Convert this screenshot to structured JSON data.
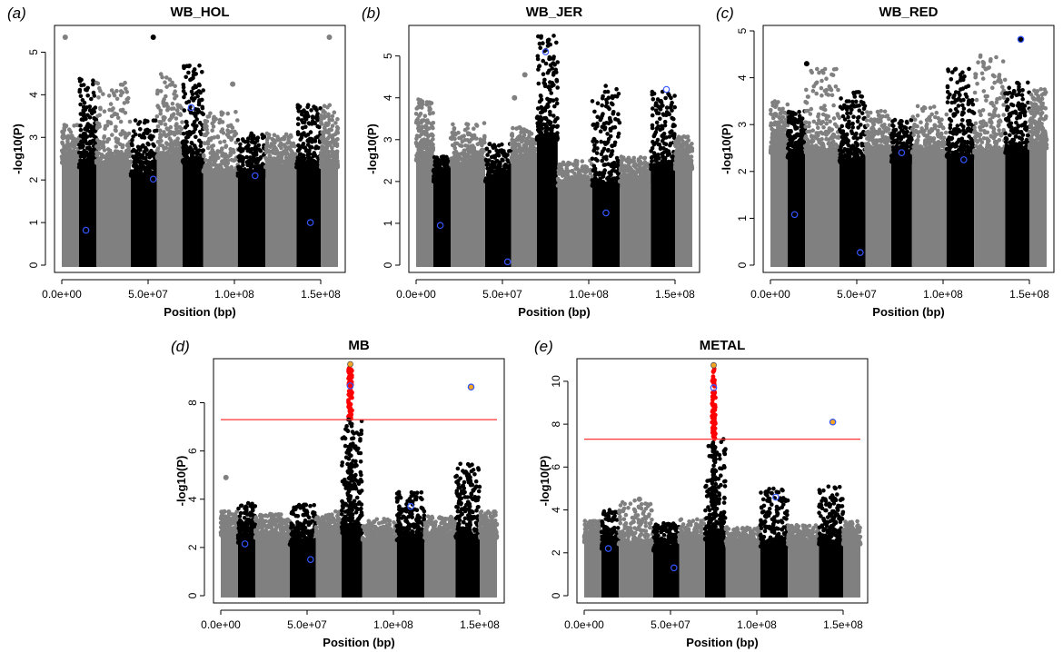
{
  "colors": {
    "gray": "#808080",
    "black": "#000000",
    "red": "#ff0000",
    "orange": "#f5a623",
    "blue_ring": "#3355ff",
    "threshold": "#ff3333"
  },
  "chart_data": [
    {
      "id": "a",
      "type": "scatter",
      "panel_label": "(a)",
      "title": "WB_HOL",
      "xlabel": "Position (bp)",
      "ylabel": "-log10(P)",
      "xlim": [
        0,
        160000000
      ],
      "ylim": [
        0,
        5.5
      ],
      "x_ticks": [
        "0.0e+00",
        "5.0e+07",
        "1.0e+08",
        "1.5e+08"
      ],
      "x_tick_values": [
        0,
        50000000,
        100000000,
        150000000
      ],
      "y_ticks": [
        0,
        1,
        2,
        3,
        4,
        5
      ],
      "threshold": null,
      "regions": [
        {
          "start": 0,
          "end": 10000000,
          "color": "gray",
          "base": 2.4,
          "max": 3.3
        },
        {
          "start": 10000000,
          "end": 20000000,
          "color": "black",
          "base": 2.3,
          "max": 4.4
        },
        {
          "start": 20000000,
          "end": 40000000,
          "color": "gray",
          "base": 2.4,
          "max": 4.3
        },
        {
          "start": 40000000,
          "end": 55000000,
          "color": "black",
          "base": 2.1,
          "max": 3.4
        },
        {
          "start": 55000000,
          "end": 70000000,
          "color": "gray",
          "base": 2.5,
          "max": 4.5
        },
        {
          "start": 70000000,
          "end": 82000000,
          "color": "black",
          "base": 2.4,
          "max": 4.7
        },
        {
          "start": 82000000,
          "end": 102000000,
          "color": "gray",
          "base": 2.2,
          "max": 3.6
        },
        {
          "start": 102000000,
          "end": 118000000,
          "color": "black",
          "base": 2.1,
          "max": 3.1
        },
        {
          "start": 118000000,
          "end": 136000000,
          "color": "gray",
          "base": 2.3,
          "max": 3.1
        },
        {
          "start": 136000000,
          "end": 150000000,
          "color": "black",
          "base": 2.3,
          "max": 3.8
        },
        {
          "start": 150000000,
          "end": 160000000,
          "color": "gray",
          "base": 2.3,
          "max": 3.8
        }
      ],
      "highlights": [
        {
          "x": 2000000,
          "y": 5.35,
          "color": "gray"
        },
        {
          "x": 53000000,
          "y": 5.35,
          "color": "black"
        },
        {
          "x": 155000000,
          "y": 5.35,
          "color": "gray"
        },
        {
          "x": 99000000,
          "y": 4.25,
          "color": "gray"
        }
      ],
      "rings": [
        {
          "x": 14000000,
          "y": 0.82
        },
        {
          "x": 53000000,
          "y": 2.02
        },
        {
          "x": 75000000,
          "y": 3.7
        },
        {
          "x": 112000000,
          "y": 2.1
        },
        {
          "x": 144000000,
          "y": 1.0
        }
      ]
    },
    {
      "id": "b",
      "type": "scatter",
      "panel_label": "(b)",
      "title": "WB_JER",
      "xlabel": "Position (bp)",
      "ylabel": "-log10(P)",
      "xlim": [
        0,
        160000000
      ],
      "ylim": [
        0,
        5.6
      ],
      "x_ticks": [
        "0.0e+00",
        "5.0e+07",
        "1.0e+08",
        "1.5e+08"
      ],
      "x_tick_values": [
        0,
        50000000,
        100000000,
        150000000
      ],
      "y_ticks": [
        0,
        1,
        2,
        3,
        4,
        5
      ],
      "threshold": null,
      "regions": [
        {
          "start": 0,
          "end": 10000000,
          "color": "gray",
          "base": 2.5,
          "max": 4.0
        },
        {
          "start": 10000000,
          "end": 20000000,
          "color": "black",
          "base": 2.0,
          "max": 2.6
        },
        {
          "start": 20000000,
          "end": 40000000,
          "color": "gray",
          "base": 2.4,
          "max": 3.4
        },
        {
          "start": 40000000,
          "end": 55000000,
          "color": "black",
          "base": 2.0,
          "max": 2.9
        },
        {
          "start": 55000000,
          "end": 70000000,
          "color": "gray",
          "base": 2.5,
          "max": 3.3
        },
        {
          "start": 70000000,
          "end": 82000000,
          "color": "black",
          "base": 3.0,
          "max": 5.5
        },
        {
          "start": 82000000,
          "end": 102000000,
          "color": "gray",
          "base": 1.9,
          "max": 2.5
        },
        {
          "start": 102000000,
          "end": 118000000,
          "color": "black",
          "base": 1.9,
          "max": 4.3
        },
        {
          "start": 118000000,
          "end": 136000000,
          "color": "gray",
          "base": 2.0,
          "max": 2.6
        },
        {
          "start": 136000000,
          "end": 150000000,
          "color": "black",
          "base": 2.3,
          "max": 4.2
        },
        {
          "start": 150000000,
          "end": 160000000,
          "color": "gray",
          "base": 2.3,
          "max": 3.1
        }
      ],
      "highlights": [
        {
          "x": 63000000,
          "y": 4.55,
          "color": "gray"
        },
        {
          "x": 57000000,
          "y": 4.0,
          "color": "gray"
        }
      ],
      "rings": [
        {
          "x": 14000000,
          "y": 0.95
        },
        {
          "x": 53000000,
          "y": 0.08
        },
        {
          "x": 75000000,
          "y": 5.1
        },
        {
          "x": 110000000,
          "y": 1.25
        },
        {
          "x": 145000000,
          "y": 4.2
        }
      ]
    },
    {
      "id": "c",
      "type": "scatter",
      "panel_label": "(c)",
      "title": "WB_RED",
      "xlabel": "Position (bp)",
      "ylabel": "-log10(P)",
      "xlim": [
        0,
        160000000
      ],
      "ylim": [
        0,
        5.0
      ],
      "x_ticks": [
        "0.0e+00",
        "5.0e+07",
        "1.0e+08",
        "1.5e+08"
      ],
      "x_tick_values": [
        0,
        50000000,
        100000000,
        150000000
      ],
      "y_ticks": [
        0,
        1,
        2,
        3,
        4,
        5
      ],
      "threshold": null,
      "regions": [
        {
          "start": 0,
          "end": 10000000,
          "color": "gray",
          "base": 2.4,
          "max": 3.5
        },
        {
          "start": 10000000,
          "end": 20000000,
          "color": "black",
          "base": 2.3,
          "max": 3.3
        },
        {
          "start": 20000000,
          "end": 40000000,
          "color": "gray",
          "base": 2.4,
          "max": 4.2
        },
        {
          "start": 40000000,
          "end": 55000000,
          "color": "black",
          "base": 2.2,
          "max": 3.7
        },
        {
          "start": 55000000,
          "end": 70000000,
          "color": "gray",
          "base": 2.4,
          "max": 3.3
        },
        {
          "start": 70000000,
          "end": 82000000,
          "color": "black",
          "base": 2.2,
          "max": 3.1
        },
        {
          "start": 82000000,
          "end": 102000000,
          "color": "gray",
          "base": 2.4,
          "max": 3.4
        },
        {
          "start": 102000000,
          "end": 118000000,
          "color": "black",
          "base": 2.3,
          "max": 4.2
        },
        {
          "start": 118000000,
          "end": 136000000,
          "color": "gray",
          "base": 2.4,
          "max": 4.5
        },
        {
          "start": 136000000,
          "end": 150000000,
          "color": "black",
          "base": 2.4,
          "max": 3.9
        },
        {
          "start": 150000000,
          "end": 160000000,
          "color": "gray",
          "base": 2.5,
          "max": 3.8
        }
      ],
      "highlights": [
        {
          "x": 21000000,
          "y": 4.3,
          "color": "black"
        },
        {
          "x": 145000000,
          "y": 4.82,
          "color": "black"
        }
      ],
      "rings": [
        {
          "x": 14000000,
          "y": 1.08
        },
        {
          "x": 52000000,
          "y": 0.27
        },
        {
          "x": 76000000,
          "y": 2.4
        },
        {
          "x": 112000000,
          "y": 2.25
        },
        {
          "x": 145000000,
          "y": 4.82
        }
      ]
    },
    {
      "id": "d",
      "type": "scatter",
      "panel_label": "(d)",
      "title": "MB",
      "xlabel": "Position (bp)",
      "ylabel": "-log10(P)",
      "xlim": [
        0,
        160000000
      ],
      "ylim": [
        0,
        9.6
      ],
      "x_ticks": [
        "0.0e+00",
        "5.0e+07",
        "1.0e+08",
        "1.5e+08"
      ],
      "x_tick_values": [
        0,
        50000000,
        100000000,
        150000000
      ],
      "y_ticks": [
        0,
        2,
        4,
        6,
        8
      ],
      "threshold": 7.3,
      "regions": [
        {
          "start": 0,
          "end": 10000000,
          "color": "gray",
          "base": 2.5,
          "max": 3.5
        },
        {
          "start": 10000000,
          "end": 20000000,
          "color": "black",
          "base": 2.2,
          "max": 3.9
        },
        {
          "start": 20000000,
          "end": 40000000,
          "color": "gray",
          "base": 2.4,
          "max": 3.4
        },
        {
          "start": 40000000,
          "end": 55000000,
          "color": "black",
          "base": 2.1,
          "max": 3.8
        },
        {
          "start": 55000000,
          "end": 70000000,
          "color": "gray",
          "base": 2.5,
          "max": 3.5
        },
        {
          "start": 70000000,
          "end": 82000000,
          "color": "black",
          "base": 2.6,
          "max": 7.3
        },
        {
          "start": 82000000,
          "end": 102000000,
          "color": "gray",
          "base": 2.3,
          "max": 3.2
        },
        {
          "start": 102000000,
          "end": 118000000,
          "color": "black",
          "base": 2.3,
          "max": 4.3
        },
        {
          "start": 118000000,
          "end": 136000000,
          "color": "gray",
          "base": 2.4,
          "max": 3.3
        },
        {
          "start": 136000000,
          "end": 150000000,
          "color": "black",
          "base": 2.4,
          "max": 5.5
        },
        {
          "start": 150000000,
          "end": 160000000,
          "color": "gray",
          "base": 2.4,
          "max": 3.5
        }
      ],
      "signal_column": {
        "x": 75000000,
        "from": 7.3,
        "to": 9.5
      },
      "highlights": [
        {
          "x": 75000000,
          "y": 9.6,
          "color": "orange"
        },
        {
          "x": 145000000,
          "y": 8.65,
          "color": "orange"
        },
        {
          "x": 3000000,
          "y": 4.9,
          "color": "gray"
        }
      ],
      "rings": [
        {
          "x": 14000000,
          "y": 2.15
        },
        {
          "x": 52000000,
          "y": 1.5
        },
        {
          "x": 75000000,
          "y": 8.7
        },
        {
          "x": 110000000,
          "y": 3.7
        },
        {
          "x": 145000000,
          "y": 8.65
        }
      ]
    },
    {
      "id": "e",
      "type": "scatter",
      "panel_label": "(e)",
      "title": "METAL",
      "xlabel": "Position (bp)",
      "ylabel": "-log10(P)",
      "xlim": [
        0,
        160000000
      ],
      "ylim": [
        0,
        10.8
      ],
      "x_ticks": [
        "0.0e+00",
        "5.0e+07",
        "1.0e+08",
        "1.5e+08"
      ],
      "x_tick_values": [
        0,
        50000000,
        100000000,
        150000000
      ],
      "y_ticks": [
        0,
        2,
        4,
        6,
        8,
        10
      ],
      "threshold": 7.3,
      "regions": [
        {
          "start": 0,
          "end": 10000000,
          "color": "gray",
          "base": 2.5,
          "max": 3.5
        },
        {
          "start": 10000000,
          "end": 20000000,
          "color": "black",
          "base": 2.2,
          "max": 4.0
        },
        {
          "start": 20000000,
          "end": 40000000,
          "color": "gray",
          "base": 2.4,
          "max": 4.5
        },
        {
          "start": 40000000,
          "end": 55000000,
          "color": "black",
          "base": 2.1,
          "max": 3.4
        },
        {
          "start": 55000000,
          "end": 70000000,
          "color": "gray",
          "base": 2.5,
          "max": 3.6
        },
        {
          "start": 70000000,
          "end": 82000000,
          "color": "black",
          "base": 2.6,
          "max": 7.3
        },
        {
          "start": 82000000,
          "end": 102000000,
          "color": "gray",
          "base": 2.3,
          "max": 3.2
        },
        {
          "start": 102000000,
          "end": 118000000,
          "color": "black",
          "base": 2.3,
          "max": 5.0
        },
        {
          "start": 118000000,
          "end": 136000000,
          "color": "gray",
          "base": 2.4,
          "max": 3.3
        },
        {
          "start": 136000000,
          "end": 150000000,
          "color": "black",
          "base": 2.4,
          "max": 5.2
        },
        {
          "start": 150000000,
          "end": 160000000,
          "color": "gray",
          "base": 2.4,
          "max": 3.5
        }
      ],
      "signal_column": {
        "x": 75000000,
        "from": 7.3,
        "to": 10.6
      },
      "highlights": [
        {
          "x": 75000000,
          "y": 10.75,
          "color": "orange"
        },
        {
          "x": 144000000,
          "y": 8.1,
          "color": "orange"
        },
        {
          "x": 32000000,
          "y": 4.5,
          "color": "gray"
        }
      ],
      "rings": [
        {
          "x": 14000000,
          "y": 2.2
        },
        {
          "x": 52000000,
          "y": 1.3
        },
        {
          "x": 75000000,
          "y": 9.7
        },
        {
          "x": 111000000,
          "y": 4.6
        },
        {
          "x": 144000000,
          "y": 8.1
        }
      ]
    }
  ]
}
